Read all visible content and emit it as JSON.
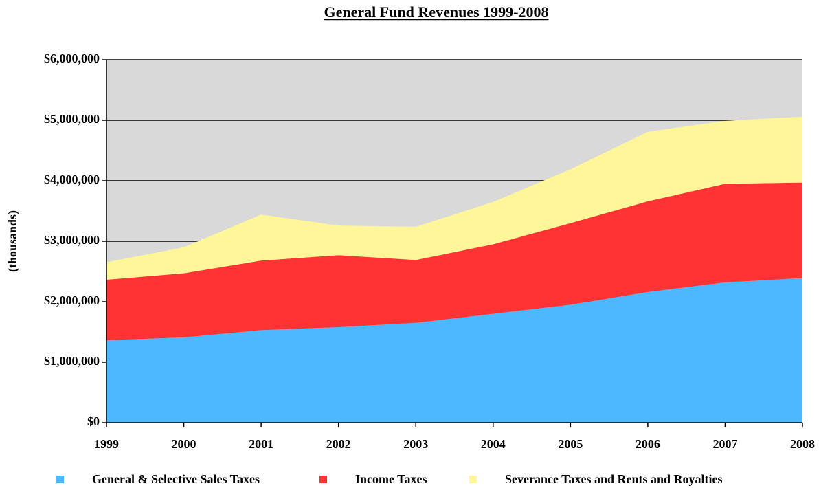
{
  "chart_data": {
    "type": "stacked_area",
    "title": "General Fund Revenues 1999-2008",
    "y_label": "(thousands)",
    "categories": [
      "1999",
      "2000",
      "2001",
      "2002",
      "2003",
      "2004",
      "2005",
      "2006",
      "2007",
      "2008"
    ],
    "series": [
      {
        "name": "General & Selective Sales Taxes",
        "color": "#4db8ff",
        "values": [
          1364000,
          1410000,
          1530000,
          1580000,
          1650000,
          1800000,
          1950000,
          2160000,
          2320000,
          2390000
        ]
      },
      {
        "name": "Income Taxes",
        "color": "#ff3333",
        "values": [
          1000000,
          1060000,
          1150000,
          1190000,
          1040000,
          1150000,
          1350000,
          1500000,
          1630000,
          1580000
        ]
      },
      {
        "name": "Severance Taxes and Rents and Royalties",
        "color": "#fff599",
        "values": [
          290000,
          430000,
          760000,
          490000,
          550000,
          700000,
          890000,
          1150000,
          1040000,
          1090000
        ]
      }
    ],
    "ylim": [
      0,
      6000000
    ],
    "yticks": [
      {
        "value": 0,
        "label": "$0"
      },
      {
        "value": 1000000,
        "label": "$1,000,000"
      },
      {
        "value": 2000000,
        "label": "$2,000,000"
      },
      {
        "value": 3000000,
        "label": "$3,000,000"
      },
      {
        "value": 4000000,
        "label": "$4,000,000"
      },
      {
        "value": 5000000,
        "label": "$5,000,000"
      },
      {
        "value": 6000000,
        "label": "$6,000,000"
      }
    ],
    "grid": true,
    "plot_background": "#d9d9d9",
    "legend": "bottom"
  }
}
